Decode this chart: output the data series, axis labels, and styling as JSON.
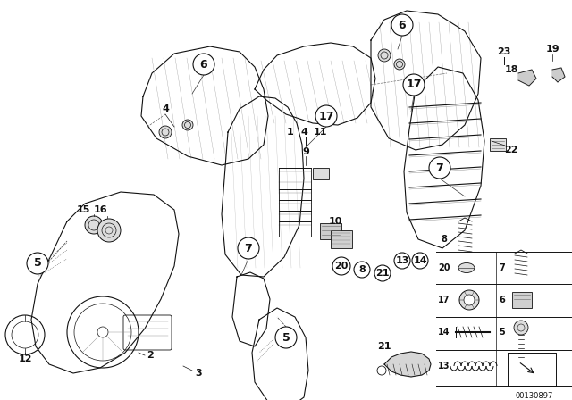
{
  "background_color": "#ffffff",
  "image_number": "00130897",
  "fig_width": 6.4,
  "fig_height": 4.48,
  "dpi": 100
}
